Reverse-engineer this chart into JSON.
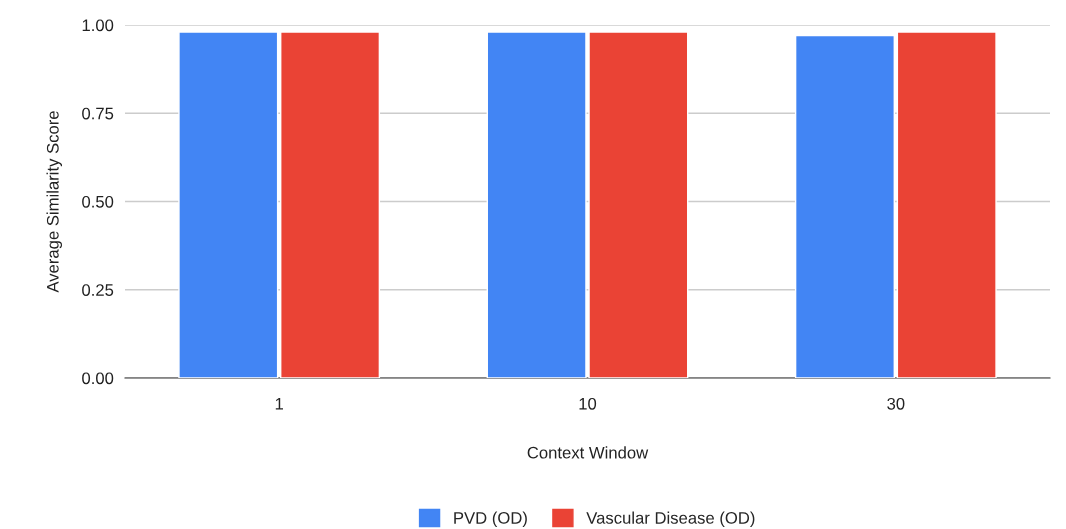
{
  "chart_data": {
    "type": "bar",
    "xlabel": "Context Window",
    "ylabel": "Average Similarity Score",
    "categories": [
      "1",
      "10",
      "30"
    ],
    "series": [
      {
        "name": "PVD (OD)",
        "color": "#4285f4",
        "values": [
          0.98,
          0.98,
          0.97
        ]
      },
      {
        "name": "Vascular Disease (OD)",
        "color": "#ea4335",
        "values": [
          0.98,
          0.98,
          0.98
        ]
      }
    ],
    "ylim": [
      0,
      1
    ],
    "yticks": [
      {
        "value": 0,
        "label": "0.00"
      },
      {
        "value": 0.25,
        "label": "0.25"
      },
      {
        "value": 0.5,
        "label": "0.50"
      },
      {
        "value": 0.75,
        "label": "0.75"
      },
      {
        "value": 1,
        "label": "1.00"
      }
    ],
    "grid": "y",
    "legend": "bottom"
  }
}
